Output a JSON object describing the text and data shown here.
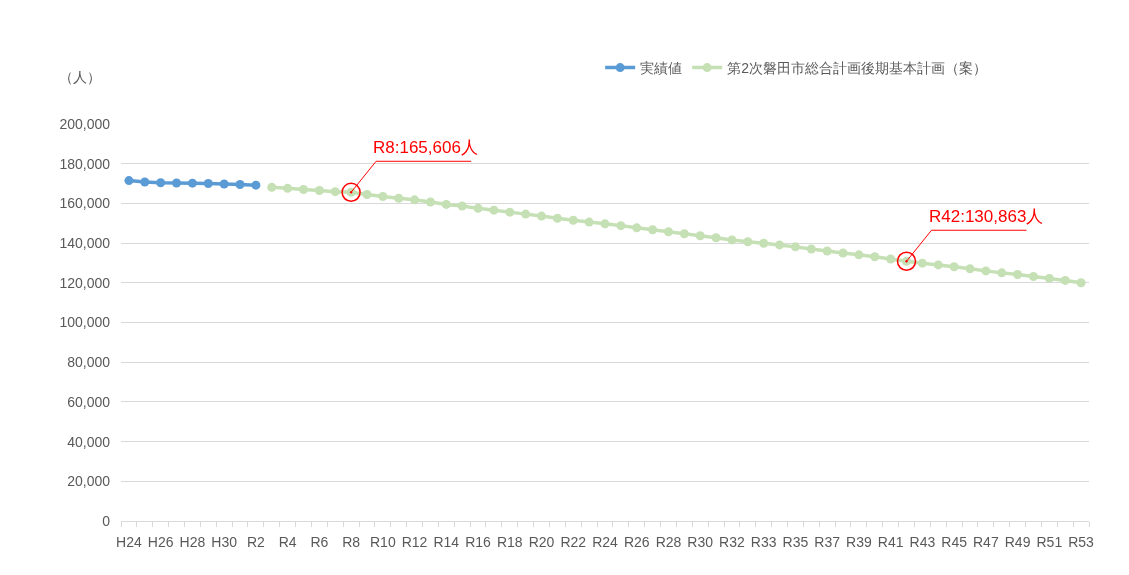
{
  "chart_data": {
    "type": "line",
    "categories": [
      "H24",
      null,
      "H26",
      null,
      "H28",
      null,
      "H30",
      null,
      "R2",
      null,
      "R4",
      null,
      "R6",
      null,
      "R8",
      null,
      "R10",
      null,
      "R12",
      null,
      "R14",
      null,
      "R16",
      null,
      "R18",
      null,
      "R20",
      null,
      "R22",
      null,
      "R24",
      null,
      "R26",
      null,
      "R28",
      null,
      "R30",
      null,
      "R32",
      null,
      "R33",
      null,
      "R35",
      null,
      "R37",
      null,
      "R39",
      null,
      "R41",
      null,
      "R43",
      null,
      "R45",
      null,
      "R47",
      null,
      "R49",
      null,
      "R51",
      null,
      "R53"
    ],
    "series": [
      {
        "name": "実績値",
        "color": "#5b9bd5",
        "values": [
          171500,
          170800,
          170400,
          170300,
          170200,
          170000,
          169800,
          169500,
          169200,
          null,
          null,
          null,
          null,
          null,
          null,
          null,
          null,
          null,
          null,
          null,
          null,
          null,
          null,
          null,
          null,
          null,
          null,
          null,
          null,
          null,
          null,
          null,
          null,
          null,
          null,
          null,
          null,
          null,
          null,
          null,
          null,
          null,
          null,
          null,
          null,
          null,
          null,
          null,
          null,
          null,
          null,
          null,
          null,
          null,
          null,
          null,
          null,
          null,
          null,
          null,
          null
        ]
      },
      {
        "name": "第2次磐田市総合計画後期基本計画（案）",
        "color": "#c5e0b4",
        "values": [
          null,
          null,
          null,
          null,
          null,
          null,
          null,
          null,
          null,
          168100,
          167600,
          167000,
          166500,
          165900,
          165606,
          164500,
          163500,
          162600,
          161800,
          160700,
          159500,
          158700,
          157500,
          156600,
          155600,
          154600,
          153600,
          152500,
          151500,
          150600,
          149700,
          148800,
          147700,
          146700,
          145700,
          144700,
          143700,
          142700,
          141600,
          140700,
          139900,
          139100,
          138100,
          137000,
          136000,
          135000,
          134100,
          133100,
          132000,
          130863,
          129900,
          129000,
          128100,
          127100,
          126000,
          125000,
          124200,
          123200,
          122200,
          121200,
          120000
        ]
      },
      {
        "type": "scatter",
        "color": "#ff0000",
        "values": [
          null,
          null,
          null,
          null,
          null,
          null,
          null,
          null,
          null,
          null,
          null,
          null,
          null,
          null,
          165606,
          null,
          null,
          null,
          null,
          null,
          null,
          null,
          null,
          null,
          null,
          null,
          null,
          null,
          null,
          null,
          null,
          null,
          null,
          null,
          null,
          null,
          null,
          null,
          null,
          null,
          null,
          null,
          null,
          null,
          null,
          null,
          null,
          null,
          null,
          130863,
          null,
          null,
          null,
          null,
          null,
          null,
          null,
          null,
          null,
          null,
          null
        ],
        "value_labels": [
          null,
          null,
          null,
          null,
          null,
          null,
          null,
          null,
          null,
          null,
          null,
          null,
          null,
          null,
          "R8:165,606人",
          null,
          null,
          null,
          null,
          null,
          null,
          null,
          null,
          null,
          null,
          null,
          null,
          null,
          null,
          null,
          null,
          null,
          null,
          null,
          null,
          null,
          null,
          null,
          null,
          null,
          null,
          null,
          null,
          null,
          null,
          null,
          null,
          null,
          null,
          "R42:130,863人",
          null,
          null,
          null,
          null,
          null,
          null,
          null,
          null,
          null,
          null,
          null
        ]
      }
    ],
    "ylabel": "（人）",
    "ylim": [
      0,
      200000
    ],
    "yticks": [
      0,
      {
        "value": 20000,
        "label": "20,000"
      },
      {
        "value": 40000,
        "label": "40,000"
      },
      {
        "value": 60000,
        "label": "60,000"
      },
      {
        "value": 80000,
        "label": "80,000"
      },
      {
        "value": 100000,
        "label": "100,000"
      },
      {
        "value": 120000,
        "label": "120,000"
      },
      {
        "value": 140000,
        "label": "140,000"
      },
      {
        "value": 160000,
        "label": "160,000"
      },
      {
        "value": 180000,
        "label": "180,000"
      },
      {
        "value": 200000,
        "label": "200,000"
      }
    ],
    "grid": "y",
    "legend": "top right",
    "marker": "circle"
  }
}
